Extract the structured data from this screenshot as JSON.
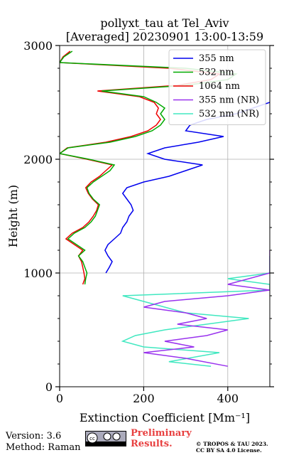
{
  "chart_data": {
    "type": "line",
    "title": "pollyxt_tau at Tel_Aviv",
    "subtitle": "[Averaged] 20230901 13:00-13:59",
    "xlabel": "Extinction Coefficient [Mm⁻¹]",
    "ylabel": "Height (m)",
    "xlim": [
      0,
      500
    ],
    "ylim": [
      0,
      3000
    ],
    "xticks": [
      0,
      200,
      400
    ],
    "yticks": [
      0,
      1000,
      2000,
      3000
    ],
    "grid": true,
    "legend_position": "top-right",
    "series": [
      {
        "name": "355 nm",
        "color": "#0000ee",
        "points": [
          [
            110,
            1000
          ],
          [
            118,
            1050
          ],
          [
            125,
            1100
          ],
          [
            115,
            1150
          ],
          [
            108,
            1200
          ],
          [
            115,
            1250
          ],
          [
            130,
            1300
          ],
          [
            145,
            1350
          ],
          [
            150,
            1400
          ],
          [
            160,
            1450
          ],
          [
            165,
            1500
          ],
          [
            175,
            1550
          ],
          [
            170,
            1600
          ],
          [
            160,
            1650
          ],
          [
            150,
            1700
          ],
          [
            160,
            1750
          ],
          [
            200,
            1800
          ],
          [
            260,
            1850
          ],
          [
            300,
            1900
          ],
          [
            340,
            1950
          ],
          [
            250,
            2000
          ],
          [
            210,
            2050
          ],
          [
            250,
            2100
          ],
          [
            330,
            2150
          ],
          [
            390,
            2200
          ],
          [
            300,
            2250
          ],
          [
            310,
            2300
          ],
          [
            350,
            2350
          ],
          [
            420,
            2400
          ],
          [
            460,
            2450
          ],
          [
            500,
            2500
          ]
        ]
      },
      {
        "name": "532 nm",
        "color": "#00aa00",
        "points": [
          [
            60,
            900
          ],
          [
            62,
            950
          ],
          [
            65,
            1000
          ],
          [
            60,
            1050
          ],
          [
            55,
            1100
          ],
          [
            45,
            1150
          ],
          [
            60,
            1200
          ],
          [
            40,
            1250
          ],
          [
            20,
            1300
          ],
          [
            35,
            1350
          ],
          [
            60,
            1400
          ],
          [
            75,
            1450
          ],
          [
            85,
            1500
          ],
          [
            90,
            1550
          ],
          [
            95,
            1600
          ],
          [
            80,
            1650
          ],
          [
            70,
            1700
          ],
          [
            65,
            1750
          ],
          [
            80,
            1800
          ],
          [
            100,
            1850
          ],
          [
            120,
            1900
          ],
          [
            130,
            1950
          ],
          [
            70,
            2000
          ],
          [
            0,
            2050
          ],
          [
            20,
            2100
          ],
          [
            120,
            2150
          ],
          [
            180,
            2200
          ],
          [
            220,
            2250
          ],
          [
            240,
            2300
          ],
          [
            250,
            2350
          ],
          [
            240,
            2400
          ],
          [
            250,
            2450
          ],
          [
            230,
            2500
          ],
          [
            200,
            2550
          ],
          [
            100,
            2600
          ],
          [
            300,
            2650
          ],
          [
            400,
            2700
          ],
          [
            420,
            2750
          ],
          [
            300,
            2800
          ],
          [
            0,
            2850
          ],
          [
            10,
            2900
          ],
          [
            30,
            2950
          ]
        ]
      },
      {
        "name": "1064 nm",
        "color": "#ee0000",
        "points": [
          [
            55,
            900
          ],
          [
            60,
            950
          ],
          [
            58,
            1000
          ],
          [
            55,
            1050
          ],
          [
            52,
            1100
          ],
          [
            45,
            1150
          ],
          [
            55,
            1200
          ],
          [
            35,
            1250
          ],
          [
            15,
            1300
          ],
          [
            30,
            1350
          ],
          [
            55,
            1400
          ],
          [
            70,
            1450
          ],
          [
            80,
            1500
          ],
          [
            88,
            1550
          ],
          [
            92,
            1600
          ],
          [
            78,
            1650
          ],
          [
            68,
            1700
          ],
          [
            62,
            1750
          ],
          [
            75,
            1800
          ],
          [
            95,
            1850
          ],
          [
            110,
            1900
          ],
          [
            125,
            1950
          ],
          [
            65,
            2000
          ],
          [
            0,
            2050
          ],
          [
            18,
            2100
          ],
          [
            110,
            2150
          ],
          [
            170,
            2200
          ],
          [
            210,
            2250
          ],
          [
            230,
            2300
          ],
          [
            240,
            2350
          ],
          [
            230,
            2400
          ],
          [
            235,
            2450
          ],
          [
            225,
            2500
          ],
          [
            190,
            2550
          ],
          [
            90,
            2600
          ],
          [
            280,
            2650
          ],
          [
            360,
            2700
          ],
          [
            380,
            2750
          ],
          [
            260,
            2800
          ],
          [
            0,
            2850
          ],
          [
            8,
            2900
          ],
          [
            25,
            2950
          ]
        ]
      },
      {
        "name": "355 nm (NR)",
        "color": "#9932ee",
        "points": [
          [
            400,
            180
          ],
          [
            300,
            250
          ],
          [
            200,
            300
          ],
          [
            320,
            350
          ],
          [
            250,
            400
          ],
          [
            350,
            450
          ],
          [
            400,
            500
          ],
          [
            280,
            550
          ],
          [
            350,
            600
          ],
          [
            300,
            650
          ],
          [
            200,
            700
          ],
          [
            250,
            750
          ],
          [
            400,
            800
          ],
          [
            500,
            850
          ],
          [
            400,
            900
          ],
          [
            500,
            1000
          ],
          [
            500,
            1050
          ],
          [
            500,
            1100
          ],
          [
            500,
            1150
          ],
          [
            500,
            1200
          ]
        ]
      },
      {
        "name": "532 nm (NR)",
        "color": "#40e8c0",
        "points": [
          [
            360,
            180
          ],
          [
            260,
            220
          ],
          [
            380,
            300
          ],
          [
            200,
            350
          ],
          [
            150,
            400
          ],
          [
            180,
            450
          ],
          [
            250,
            500
          ],
          [
            450,
            600
          ],
          [
            300,
            650
          ],
          [
            250,
            700
          ],
          [
            200,
            750
          ],
          [
            150,
            800
          ],
          [
            500,
            850
          ],
          [
            500,
            900
          ],
          [
            400,
            950
          ],
          [
            500,
            1000
          ],
          [
            500,
            1050
          ],
          [
            500,
            1100
          ],
          [
            500,
            1150
          ]
        ]
      }
    ]
  },
  "footer": {
    "version": "Version: 3.6",
    "method": "Method: Raman",
    "preliminary": [
      "Preliminary",
      "Results."
    ],
    "copyright": [
      "© TROPOS & TAU 2023.",
      "CC BY SA 4.0 License."
    ]
  }
}
